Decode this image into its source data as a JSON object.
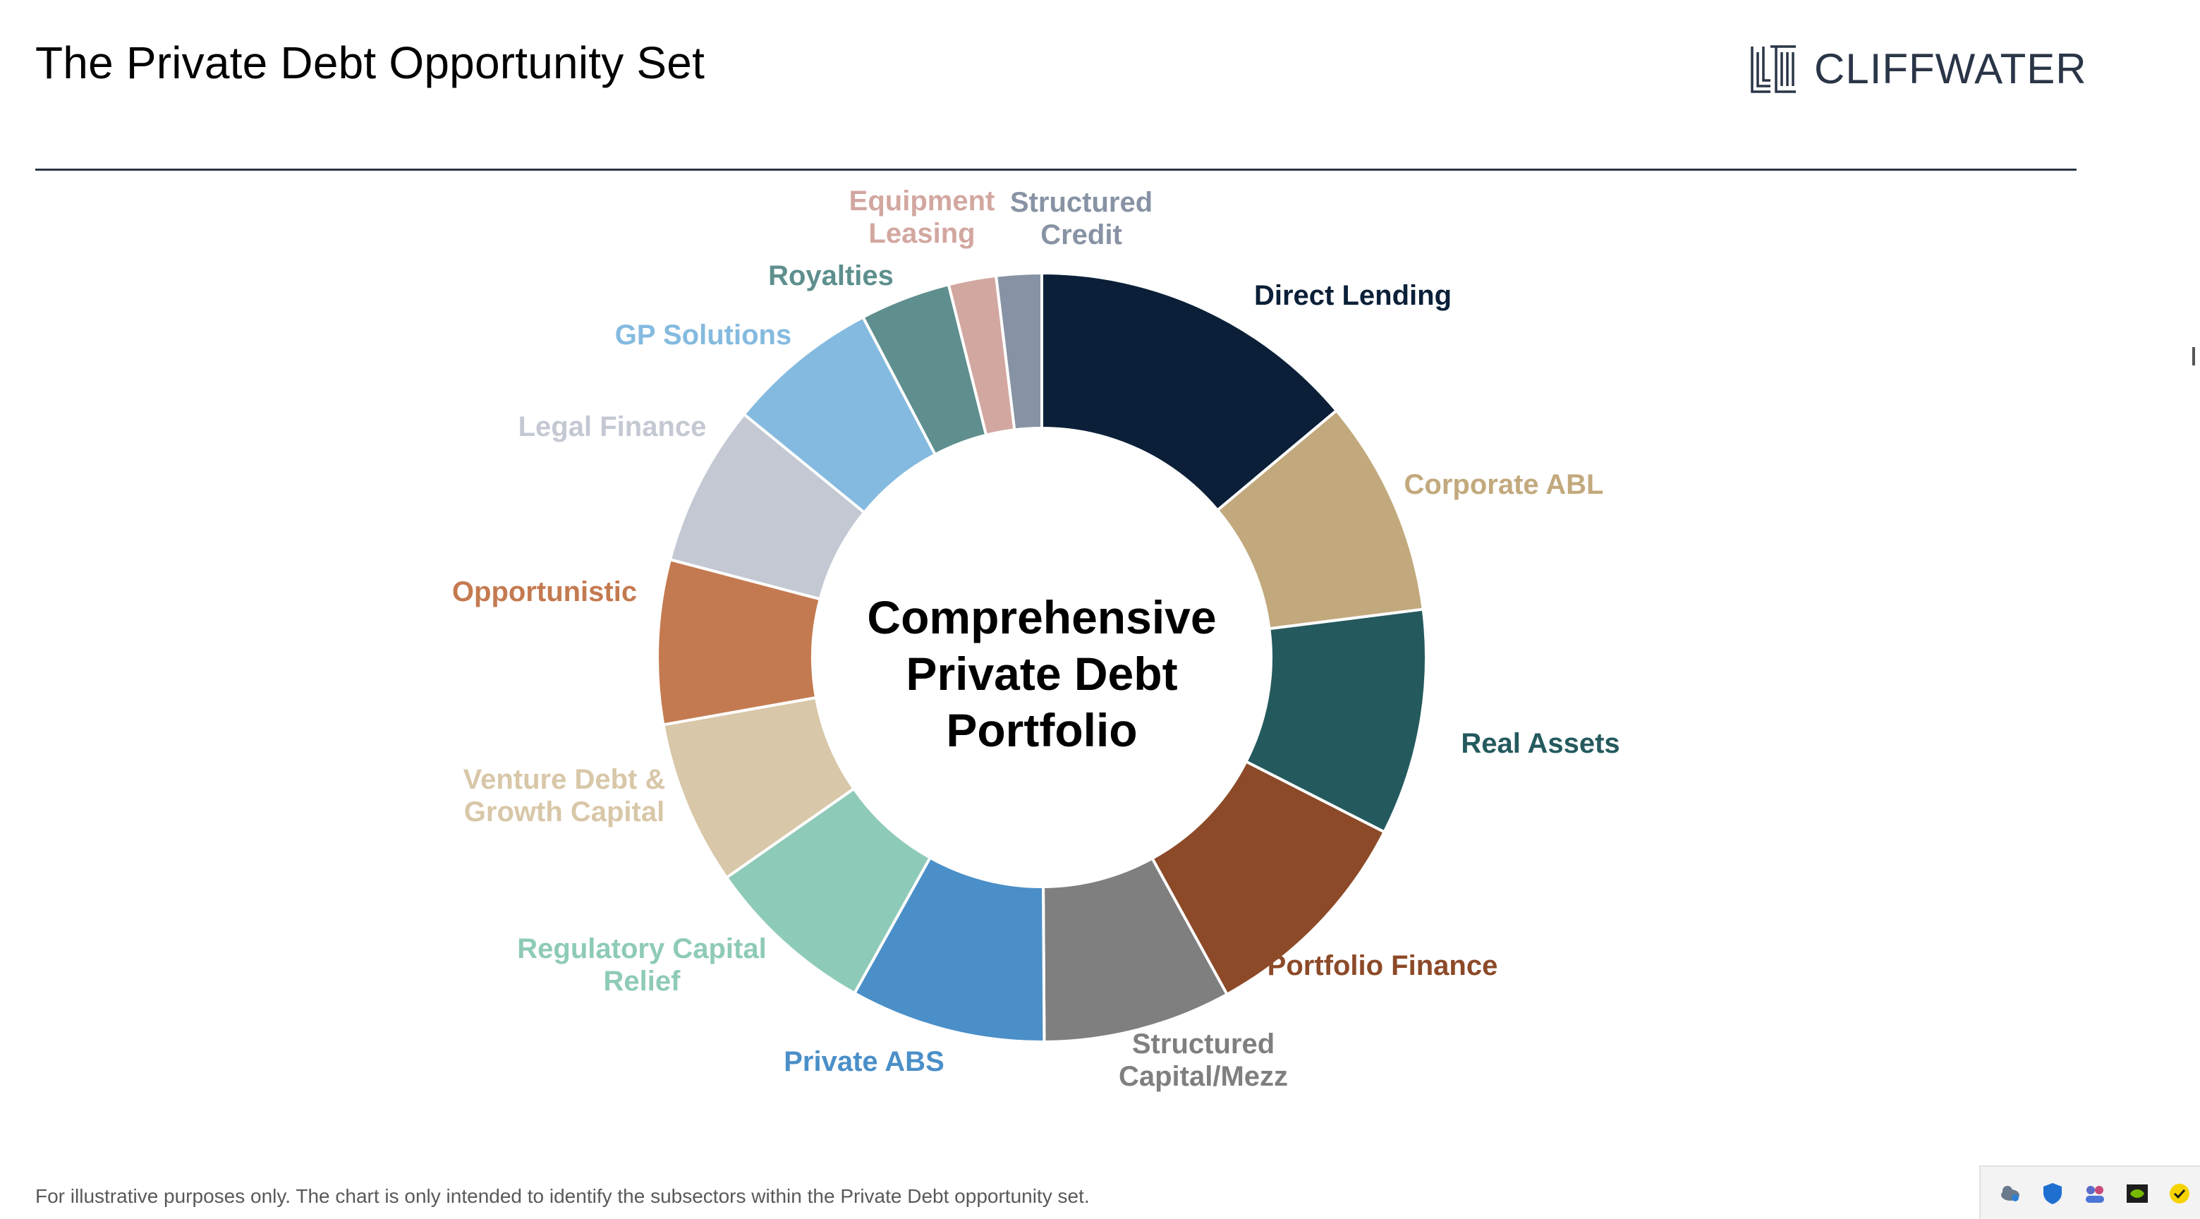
{
  "header": {
    "title": "The Private Debt Opportunity Set",
    "logo_text": "CLIFFWATER"
  },
  "footnote": "For illustrative purposes only. The chart is only intended to identify the subsectors within the Private Debt opportunity set.",
  "chart_data": {
    "type": "pie",
    "style": "donut",
    "center_label": [
      "Comprehensive",
      "Private Debt",
      "Portfolio"
    ],
    "legend": "none (labels placed next to each segment)",
    "slices": [
      {
        "label": [
          "Direct Lending"
        ],
        "value": 13.9,
        "color": "#0b2038"
      },
      {
        "label": [
          "Corporate ABL"
        ],
        "value": 9.1,
        "color": "#c2a97d"
      },
      {
        "label": [
          "Real Assets"
        ],
        "value": 9.5,
        "color": "#245a5e"
      },
      {
        "label": [
          "Portfolio Finance"
        ],
        "value": 9.5,
        "color": "#8c4a28"
      },
      {
        "label": [
          "Structured",
          "Capital/Mezz"
        ],
        "value": 7.9,
        "color": "#7f7f7f"
      },
      {
        "label": [
          "Private ABS"
        ],
        "value": 8.2,
        "color": "#4b8fc8"
      },
      {
        "label": [
          "Regulatory Capital",
          "Relief"
        ],
        "value": 7.2,
        "color": "#8ecab8"
      },
      {
        "label": [
          "Venture Debt &",
          "Growth Capital"
        ],
        "value": 6.9,
        "color": "#d8c7a8"
      },
      {
        "label": [
          "Opportunistic"
        ],
        "value": 6.9,
        "color": "#c47a50"
      },
      {
        "label": [
          "Legal Finance"
        ],
        "value": 6.8,
        "color": "#c4c8d3"
      },
      {
        "label": [
          "GP Solutions"
        ],
        "value": 6.4,
        "color": "#84badf"
      },
      {
        "label": [
          "Royalties"
        ],
        "value": 3.8,
        "color": "#5e8f8e"
      },
      {
        "label": [
          "Equipment",
          "Leasing"
        ],
        "value": 2.0,
        "color": "#d2a7a0"
      },
      {
        "label": [
          "Structured",
          "Credit"
        ],
        "value": 1.9,
        "color": "#8793a4"
      }
    ]
  }
}
